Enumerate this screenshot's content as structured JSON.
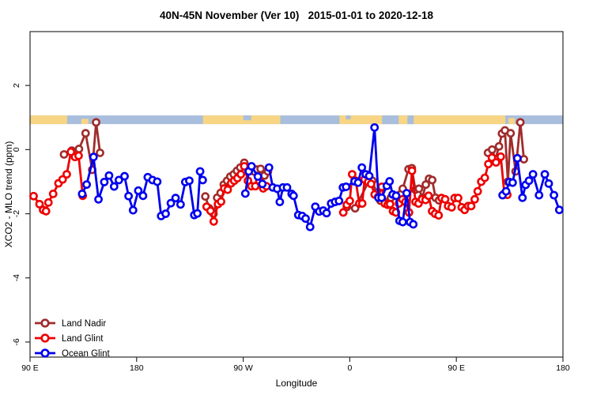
{
  "chart_data": {
    "type": "line",
    "title": "40N-45N November (Ver 10)   2015-01-01 to 2020-12-18",
    "xlabel": "Longitude",
    "ylabel": "XCO2 - MLO trend (ppm)",
    "xlim": [
      90,
      540
    ],
    "ylim": [
      -6.47,
      3.68
    ],
    "grid": false,
    "legend_position": "bottom-left",
    "x_ticks": [
      {
        "pos": 90,
        "label": "90 E"
      },
      {
        "pos": 180,
        "label": "180"
      },
      {
        "pos": 270,
        "label": "90 W"
      },
      {
        "pos": 360,
        "label": "0"
      },
      {
        "pos": 450,
        "label": "90 E"
      },
      {
        "pos": 540,
        "label": "180"
      }
    ],
    "y_ticks": [
      {
        "pos": 2,
        "label": "2"
      },
      {
        "pos": 0,
        "label": "0"
      },
      {
        "pos": -2,
        "label": "-2"
      },
      {
        "pos": -4,
        "label": "-4"
      },
      {
        "pos": -6,
        "label": "-6"
      }
    ],
    "map_band": {
      "y_range": [
        0.795,
        1.066
      ],
      "ocean_color": "#a9bedc",
      "land_color": "#f7d584",
      "land_segments": [
        [
          90,
          121.3
        ],
        [
          236,
          301.3
        ],
        [
          351.3,
          491.3
        ]
      ],
      "island_segments": [
        {
          "from": 133.3,
          "to": 139.3,
          "frac": 0.6
        },
        {
          "from": 142.7,
          "to": 146.7,
          "frac": 0.5
        },
        {
          "from": 494.0,
          "to": 499.3,
          "frac": 0.7
        },
        {
          "from": 502.0,
          "to": 506.0,
          "frac": 0.5
        }
      ],
      "lake_segments": [
        {
          "from": 270.0,
          "to": 276.7,
          "frac": 0.55
        },
        {
          "from": 356.7,
          "to": 360.7,
          "frac": 0.45
        },
        {
          "from": 387.3,
          "to": 401.3,
          "frac": 1.0
        },
        {
          "from": 408.7,
          "to": 414.0,
          "frac": 1.0
        }
      ]
    },
    "series": [
      {
        "name": "Land Nadir",
        "color": "#a02c2c",
        "segments": [
          [
            [
              118.7,
              -0.15
            ],
            [
              125.3,
              -0.03
            ],
            [
              131.3,
              0.02
            ],
            [
              136.9,
              0.51
            ],
            [
              142.5,
              -0.63
            ],
            [
              145.8,
              0.85
            ],
            [
              149.1,
              -0.1
            ]
          ],
          [
            [
              238,
              -1.46
            ],
            [
              241.3,
              -1.83
            ],
            [
              244.9,
              -2.0
            ],
            [
              248,
              -1.5
            ],
            [
              250.9,
              -1.35
            ],
            [
              253.6,
              -1.09
            ],
            [
              256.4,
              -0.97
            ],
            [
              259.1,
              -0.84
            ],
            [
              262,
              -0.77
            ],
            [
              264.7,
              -0.66
            ],
            [
              267.5,
              -0.56
            ],
            [
              270.9,
              -0.41
            ],
            [
              273.6,
              -0.55
            ],
            [
              276.4,
              -0.62
            ],
            [
              279.1,
              -0.68
            ],
            [
              281.8,
              -0.62
            ],
            [
              284.7,
              -0.6
            ],
            [
              288,
              -0.81
            ],
            [
              290.9,
              -0.68
            ]
          ],
          [
            [
              357.5,
              -1.79
            ],
            [
              364.5,
              -1.83
            ],
            [
              375.8,
              -1.0
            ],
            [
              379,
              -0.97
            ],
            [
              382.5,
              -1.34
            ],
            [
              385.8,
              -1.59
            ],
            [
              394.7,
              -1.5
            ],
            [
              404.7,
              -1.22
            ],
            [
              409.6,
              -0.61
            ],
            [
              412.4,
              -0.58
            ],
            [
              415.3,
              -1.25
            ],
            [
              418.4,
              -1.22
            ],
            [
              421.3,
              -1.5
            ],
            [
              424.2,
              -1.09
            ],
            [
              426.9,
              -0.91
            ],
            [
              429.6,
              -0.95
            ],
            [
              432.4,
              -1.5
            ],
            [
              435.3,
              -1.58
            ]
          ],
          [
            [
              476.7,
              -0.1
            ],
            [
              480.2,
              0.0
            ],
            [
              483,
              -0.3
            ],
            [
              486,
              0.1
            ],
            [
              488.5,
              0.5
            ],
            [
              491,
              0.6
            ],
            [
              493.5,
              -1.0
            ],
            [
              495.8,
              0.51
            ],
            [
              500,
              -0.68
            ],
            [
              504,
              0.85
            ],
            [
              507,
              -0.3
            ]
          ]
        ]
      },
      {
        "name": "Land Glint",
        "color": "#ee0000",
        "segments": [
          [
            [
              93,
              -1.45
            ],
            [
              98,
              -1.7
            ],
            [
              101,
              -1.88
            ],
            [
              103.5,
              -1.92
            ],
            [
              105.5,
              -1.65
            ],
            [
              109.5,
              -1.38
            ],
            [
              114,
              -1.05
            ],
            [
              117.5,
              -0.93
            ],
            [
              121,
              -0.77
            ],
            [
              124.5,
              -0.07
            ],
            [
              128,
              -0.23
            ],
            [
              131,
              -0.19
            ],
            [
              134.5,
              -1.44
            ]
          ],
          [
            [
              239.1,
              -1.78
            ],
            [
              242.4,
              -1.91
            ],
            [
              245.1,
              -2.24
            ],
            [
              248.7,
              -1.7
            ],
            [
              251.3,
              -1.62
            ],
            [
              254,
              -1.21
            ],
            [
              256.9,
              -1.25
            ],
            [
              259.8,
              -1.05
            ],
            [
              262.4,
              -0.97
            ],
            [
              265.1,
              -0.89
            ],
            [
              268,
              -0.77
            ],
            [
              270.9,
              -0.52
            ],
            [
              274,
              -0.97
            ],
            [
              276.9,
              -1.14
            ],
            [
              280.2,
              -1.14
            ],
            [
              283.6,
              -0.97
            ],
            [
              286.9,
              -1.21
            ],
            [
              289.6,
              -1.14
            ]
          ],
          [
            [
              354.5,
              -1.96
            ],
            [
              357.5,
              -1.72
            ],
            [
              360,
              -1.6
            ],
            [
              362,
              -0.77
            ],
            [
              365,
              -0.97
            ],
            [
              368,
              -1.68
            ],
            [
              370.5,
              -1.68
            ],
            [
              372.5,
              -0.93
            ],
            [
              375.5,
              -1.01
            ],
            [
              378,
              -1.07
            ],
            [
              381,
              -1.4
            ],
            [
              384,
              -1.47
            ],
            [
              387,
              -1.16
            ],
            [
              389.5,
              -1.68
            ],
            [
              392,
              -1.72
            ],
            [
              394,
              -1.7
            ],
            [
              396.5,
              -1.92
            ],
            [
              399,
              -1.96
            ],
            [
              401.5,
              -1.68
            ],
            [
              404.5,
              -1.55
            ],
            [
              407,
              -1.63
            ],
            [
              410,
              -1.96
            ],
            [
              412.5,
              -0.66
            ],
            [
              415.5,
              -1.63
            ],
            [
              418,
              -1.68
            ],
            [
              421,
              -1.55
            ],
            [
              424,
              -1.57
            ],
            [
              426.5,
              -1.44
            ],
            [
              429.5,
              -1.92
            ],
            [
              432,
              -2.0
            ],
            [
              435,
              -2.05
            ],
            [
              437.5,
              -1.51
            ],
            [
              440.5,
              -1.55
            ],
            [
              443,
              -1.76
            ],
            [
              446,
              -1.8
            ],
            [
              448.5,
              -1.51
            ],
            [
              451.5,
              -1.51
            ],
            [
              454.5,
              -1.8
            ],
            [
              457,
              -1.88
            ],
            [
              460,
              -1.76
            ],
            [
              462.5,
              -1.76
            ],
            [
              465.5,
              -1.55
            ],
            [
              468,
              -1.3
            ],
            [
              471,
              -1.0
            ],
            [
              474,
              -0.88
            ],
            [
              477,
              -0.45
            ],
            [
              480,
              -0.25
            ],
            [
              483.5,
              -0.4
            ],
            [
              487.5,
              -0.22
            ],
            [
              490.5,
              -1.37
            ],
            [
              493,
              -1.41
            ]
          ]
        ]
      },
      {
        "name": "Ocean Glint",
        "color": "#0000ee",
        "segments": [
          [
            [
              134,
              -1.38
            ],
            [
              137.8,
              -1.09
            ],
            [
              143.6,
              -0.23
            ],
            [
              147.8,
              -1.55
            ],
            [
              152.7,
              -1.01
            ],
            [
              156.7,
              -0.81
            ],
            [
              161,
              -1.15
            ],
            [
              165,
              -0.95
            ],
            [
              169.8,
              -0.83
            ],
            [
              173.2,
              -1.45
            ],
            [
              177,
              -1.89
            ],
            [
              181.4,
              -1.28
            ],
            [
              185.4,
              -1.44
            ],
            [
              189.4,
              -0.86
            ],
            [
              193.4,
              -0.95
            ],
            [
              197.4,
              -1.0
            ],
            [
              200.7,
              -2.07
            ],
            [
              204.5,
              -2.0
            ],
            [
              208.9,
              -1.67
            ],
            [
              212.9,
              -1.51
            ],
            [
              217.1,
              -1.71
            ],
            [
              221.1,
              -1.01
            ],
            [
              224.5,
              -0.97
            ],
            [
              228.7,
              -2.04
            ],
            [
              231.3,
              -1.99
            ],
            [
              233.6,
              -0.68
            ],
            [
              235.8,
              -0.95
            ]
          ],
          [
            [
              271.8,
              -1.37
            ],
            [
              274.7,
              -0.68
            ],
            [
              277,
              -0.52
            ],
            [
              282.4,
              -0.84
            ],
            [
              286.2,
              -1.07
            ]
          ],
          [
            [
              291.8,
              -0.56
            ],
            [
              295,
              -1.18
            ],
            [
              298.7,
              -1.22
            ],
            [
              300.9,
              -1.63
            ],
            [
              303.6,
              -1.18
            ],
            [
              307,
              -1.18
            ],
            [
              310.9,
              -1.38
            ],
            [
              312.5,
              -1.44
            ],
            [
              316.5,
              -2.04
            ],
            [
              319.8,
              -2.07
            ],
            [
              322.7,
              -2.15
            ],
            [
              326.5,
              -2.41
            ],
            [
              330.9,
              -1.78
            ],
            [
              334.2,
              -1.93
            ],
            [
              337.6,
              -1.9
            ],
            [
              340.4,
              -1.98
            ],
            [
              344.2,
              -1.68
            ],
            [
              347.6,
              -1.63
            ],
            [
              350.9,
              -1.6
            ],
            [
              354.2,
              -1.18
            ],
            [
              356.9,
              -1.16
            ],
            [
              364,
              -0.99
            ],
            [
              367,
              -1.03
            ],
            [
              370.2,
              -0.56
            ],
            [
              373.5,
              -0.77
            ],
            [
              376.4,
              -0.82
            ],
            [
              380.9,
              0.69
            ],
            [
              384.2,
              -1.5
            ],
            [
              386.9,
              -1.5
            ],
            [
              391.3,
              -1.13
            ],
            [
              393.6,
              -0.99
            ],
            [
              396.2,
              -1.4
            ],
            [
              399.1,
              -1.44
            ],
            [
              402,
              -2.22
            ],
            [
              404.7,
              -2.26
            ],
            [
              408,
              -1.36
            ],
            [
              410.9,
              -2.26
            ],
            [
              413.6,
              -2.33
            ]
          ],
          [
            [
              489,
              -1.42
            ],
            [
              492,
              -1.3
            ],
            [
              494.7,
              -1.01
            ],
            [
              497.5,
              -1.03
            ],
            [
              501.5,
              -0.27
            ],
            [
              505.8,
              -1.5
            ],
            [
              508.5,
              -1.1
            ],
            [
              511.3,
              -0.97
            ],
            [
              514.7,
              -0.77
            ],
            [
              519.8,
              -1.42
            ],
            [
              524.7,
              -0.77
            ],
            [
              528,
              -1.06
            ],
            [
              532.4,
              -1.42
            ],
            [
              536.9,
              -1.88
            ]
          ]
        ]
      }
    ]
  }
}
